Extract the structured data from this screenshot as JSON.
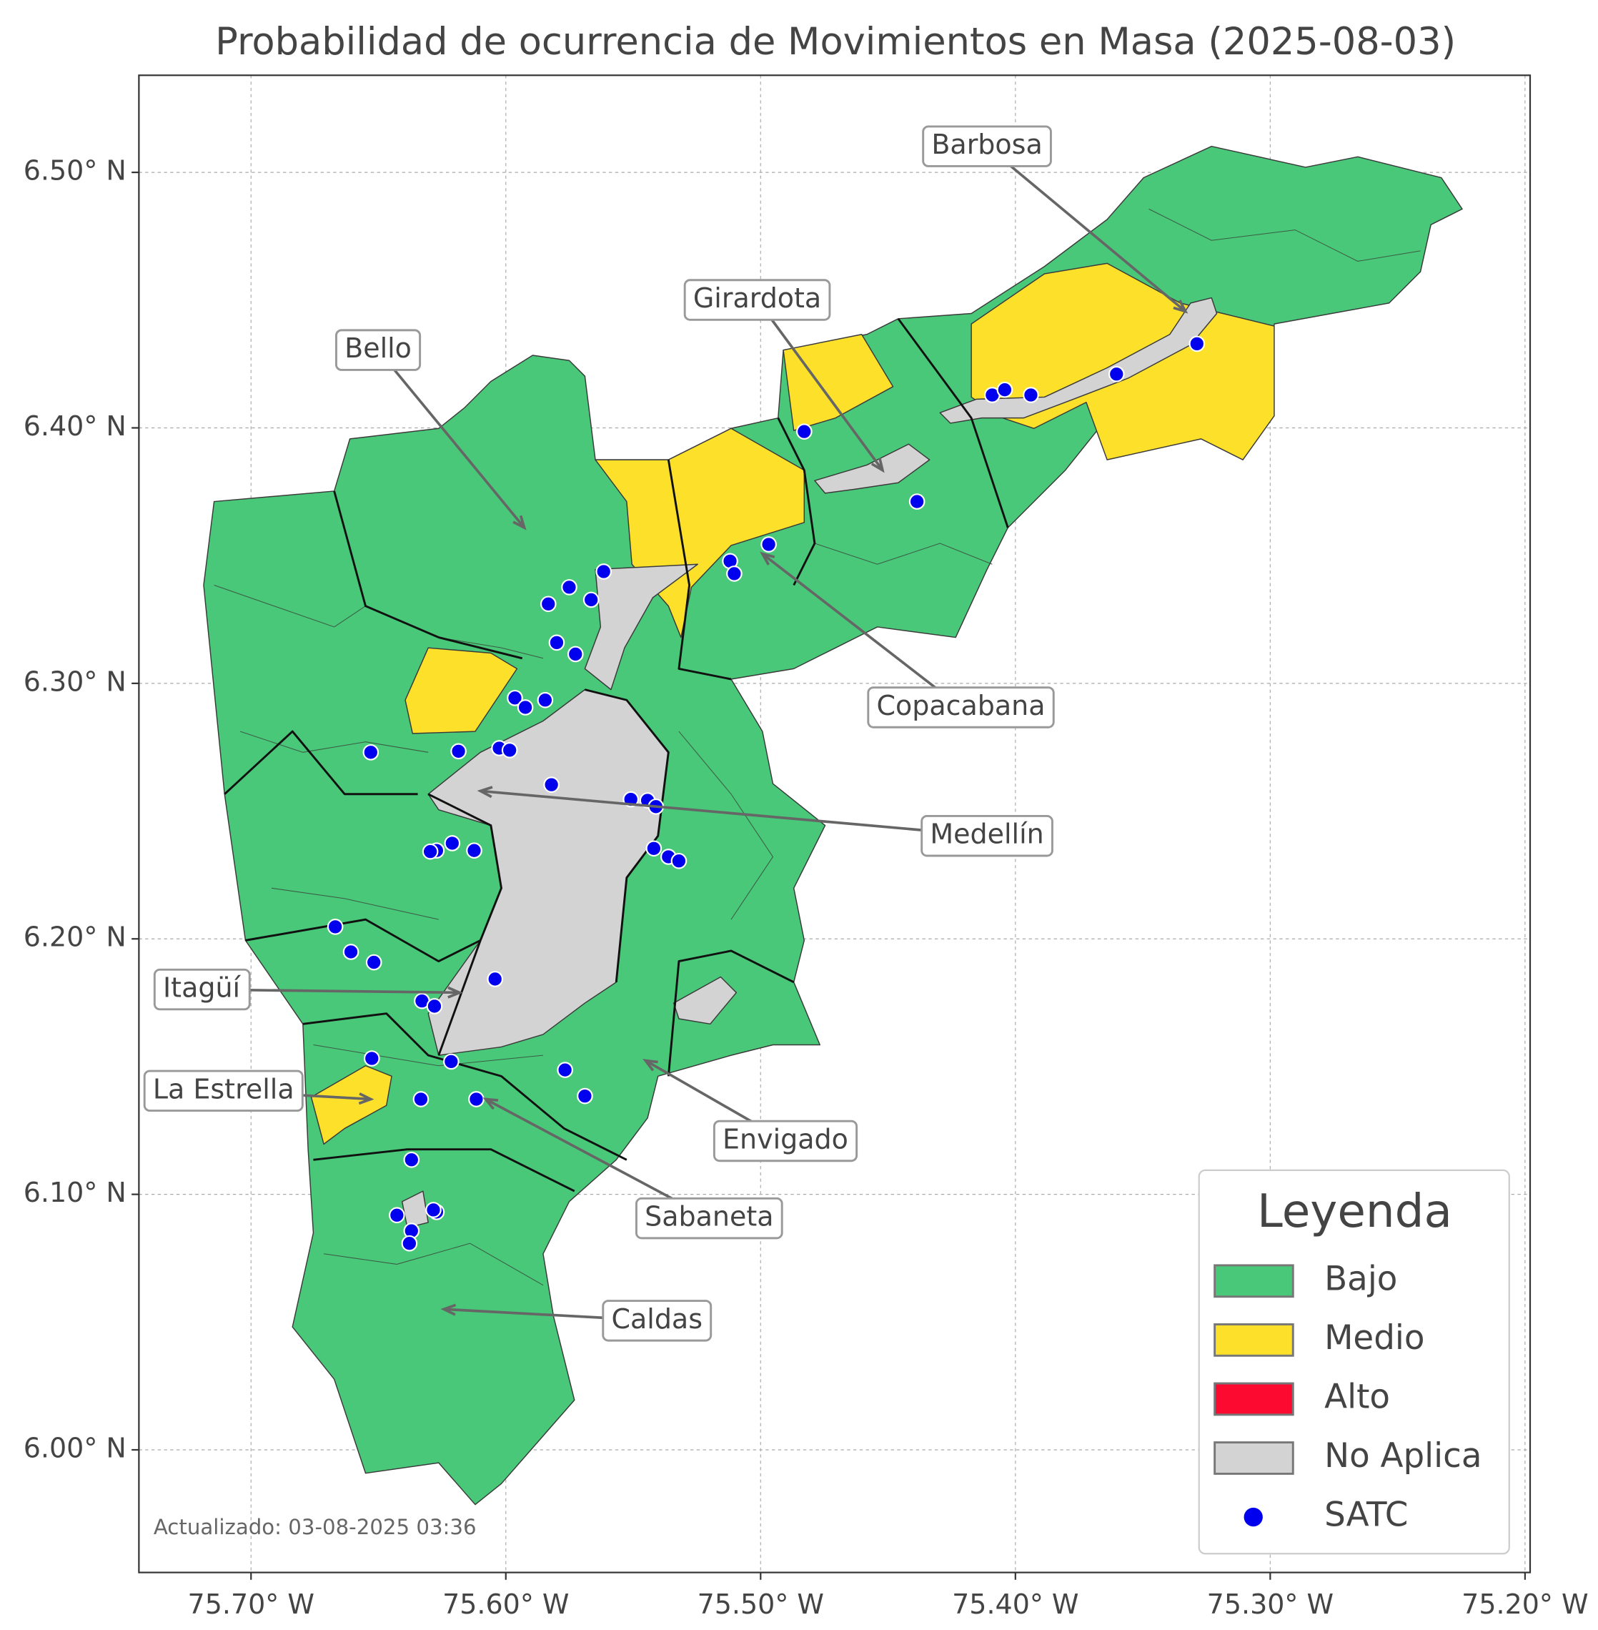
{
  "map": {
    "title": "Probabilidad de ocurrencia de Movimientos en Masa (2025-08-03)",
    "xlim": [
      -75.744,
      -75.198
    ],
    "ylim": [
      5.952,
      6.538
    ],
    "xticks": [
      {
        "value": -75.7,
        "label": "75.70° W"
      },
      {
        "value": -75.6,
        "label": "75.60° W"
      },
      {
        "value": -75.5,
        "label": "75.50° W"
      },
      {
        "value": -75.4,
        "label": "75.40° W"
      },
      {
        "value": -75.3,
        "label": "75.30° W"
      },
      {
        "value": -75.2,
        "label": "75.20° W"
      }
    ],
    "yticks": [
      {
        "value": 6.0,
        "label": "6.00° N"
      },
      {
        "value": 6.1,
        "label": "6.10° N"
      },
      {
        "value": 6.2,
        "label": "6.20° N"
      },
      {
        "value": 6.3,
        "label": "6.30° N"
      },
      {
        "value": 6.4,
        "label": "6.40° N"
      },
      {
        "value": 6.5,
        "label": "6.50° N"
      }
    ],
    "grid": true,
    "labels": [
      "Barbosa",
      "Girardota",
      "Bello",
      "Copacabana",
      "Medellín",
      "Itagüí",
      "La Estrella",
      "Envigado",
      "Sabaneta",
      "Caldas"
    ],
    "legend": {
      "title": "Leyenda",
      "items": [
        {
          "name": "Bajo",
          "color": "#48c878"
        },
        {
          "name": "Medio",
          "color": "#fce02a"
        },
        {
          "name": "Alto",
          "color": "#fc0a30"
        },
        {
          "name": "No Aplica",
          "color": "#d3d3d3"
        },
        {
          "name": "SATC",
          "color": "#0000ee"
        }
      ]
    },
    "footnote": "Actualizado: 03-08-2025 03:36"
  }
}
